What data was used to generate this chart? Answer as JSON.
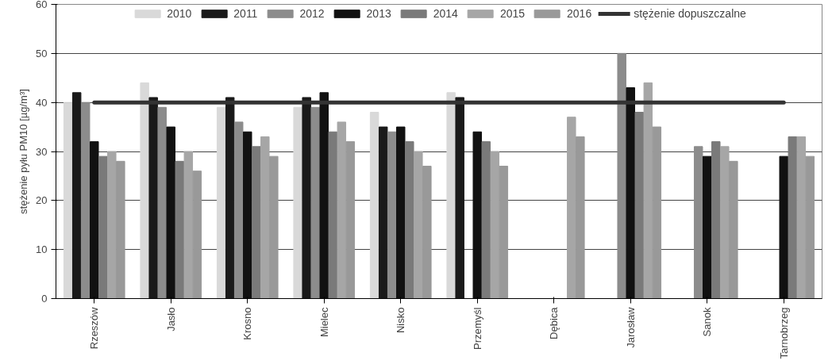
{
  "chart_data": {
    "type": "bar",
    "ylabel": "stężenie pyłu PM10 [µg/m³]",
    "categories": [
      "Rzeszów",
      "Jasło",
      "Krosno",
      "Mielec",
      "Nisko",
      "Przemyśl",
      "Dębica",
      "Jarosław",
      "Sanok",
      "Tarnobrzeg"
    ],
    "series": [
      {
        "name": "2010",
        "color": "#d9d9d9",
        "values": [
          40,
          44,
          39,
          39,
          38,
          42,
          null,
          null,
          null,
          null
        ]
      },
      {
        "name": "2011",
        "color": "#1a1a1a",
        "values": [
          42,
          41,
          41,
          41,
          35,
          41,
          null,
          null,
          null,
          null
        ]
      },
      {
        "name": "2012",
        "color": "#8c8c8c",
        "values": [
          40,
          39,
          36,
          39,
          34,
          null,
          null,
          50,
          31,
          null
        ]
      },
      {
        "name": "2013",
        "color": "#111111",
        "values": [
          32,
          35,
          34,
          42,
          35,
          34,
          null,
          43,
          29,
          29
        ]
      },
      {
        "name": "2014",
        "color": "#7a7a7a",
        "values": [
          29,
          28,
          31,
          34,
          32,
          32,
          null,
          38,
          32,
          33
        ]
      },
      {
        "name": "2015",
        "color": "#a6a6a6",
        "values": [
          30,
          30,
          33,
          36,
          30,
          30,
          37,
          44,
          31,
          33
        ]
      },
      {
        "name": "2016",
        "color": "#999999",
        "values": [
          28,
          26,
          29,
          32,
          27,
          27,
          33,
          35,
          28,
          29
        ]
      },
      {
        "name": "stężenie dopuszczalne",
        "type": "line",
        "color": "#333333",
        "values": [
          40,
          40,
          40,
          40,
          40,
          40,
          40,
          40,
          40,
          40
        ]
      }
    ],
    "ylim": [
      0,
      60
    ],
    "yticks": [
      0,
      10,
      20,
      30,
      40,
      50,
      60
    ],
    "grid": "y",
    "legend": "top"
  }
}
